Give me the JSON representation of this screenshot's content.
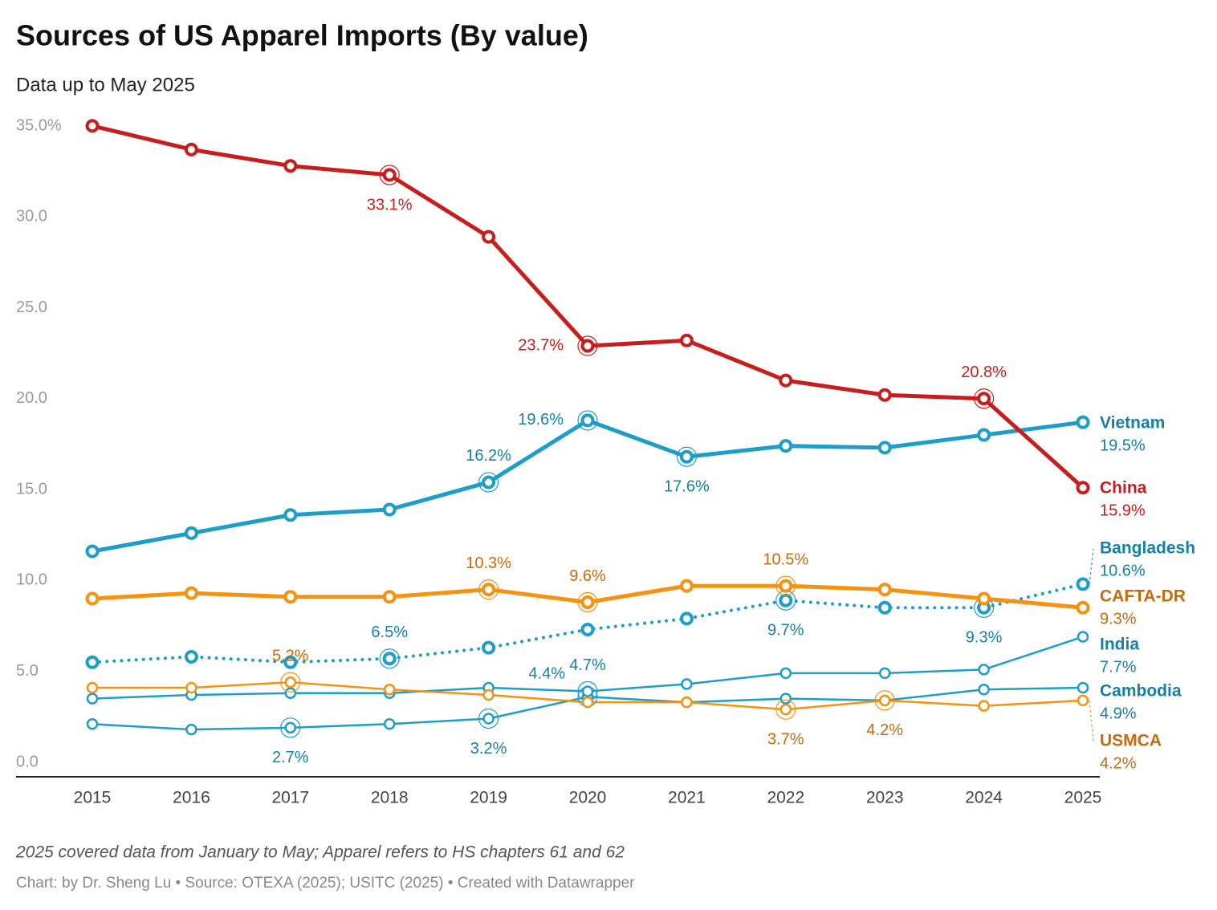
{
  "chart_data": {
    "type": "line",
    "title": "Sources of US Apparel Imports (By value)",
    "subtitle": "Data up to May 2025",
    "note": "2025 covered data from January to May; Apparel refers to HS chapters 61 and 62",
    "credit": "Chart: by Dr. Sheng Lu • Source: OTEXA (2025); USITC (2025) • Created with Datawrapper",
    "x": [
      2015,
      2016,
      2017,
      2018,
      2019,
      2020,
      2021,
      2022,
      2023,
      2024,
      2025
    ],
    "ylim": [
      0,
      35
    ],
    "yticks": [
      {
        "value": 0,
        "label": "0.0"
      },
      {
        "value": 5,
        "label": "5.0"
      },
      {
        "value": 10,
        "label": "10.0"
      },
      {
        "value": 15,
        "label": "15.0"
      },
      {
        "value": 20,
        "label": "20.0"
      },
      {
        "value": 25,
        "label": "25.0"
      },
      {
        "value": 30,
        "label": "30.0"
      },
      {
        "value": 35,
        "label": "35.0%"
      }
    ],
    "grid": false,
    "series": [
      {
        "name": "China",
        "color": "#c71e1d",
        "label_color": "#c71e1d",
        "style": "solid",
        "width": 5,
        "values": [
          35.8,
          34.5,
          33.6,
          33.1,
          29.7,
          23.7,
          24.0,
          21.8,
          21.0,
          20.8,
          15.9
        ],
        "value_labels": [
          null,
          null,
          null,
          "33.1%",
          null,
          "23.7%",
          null,
          null,
          null,
          "20.8%",
          "15.9%"
        ]
      },
      {
        "name": "Vietnam",
        "color": "#1d9ec9",
        "label_color": "#1580a8",
        "style": "solid",
        "width": 5,
        "values": [
          12.4,
          13.4,
          14.4,
          14.7,
          16.2,
          19.6,
          17.6,
          18.2,
          18.1,
          18.8,
          19.5
        ],
        "value_labels": [
          null,
          null,
          null,
          null,
          "16.2%",
          "19.6%",
          "17.6%",
          null,
          null,
          null,
          "19.5%"
        ]
      },
      {
        "name": "Bangladesh",
        "color": "#1d9ec9",
        "label_color": "#1580a8",
        "style": "dotted",
        "width": 4,
        "values": [
          6.3,
          6.6,
          6.3,
          6.5,
          7.1,
          8.1,
          8.7,
          9.7,
          9.3,
          9.3,
          10.6
        ],
        "value_labels": [
          null,
          null,
          null,
          "6.5%",
          null,
          null,
          null,
          "9.7%",
          null,
          "9.3%",
          "10.6%"
        ]
      },
      {
        "name": "CAFTA-DR",
        "color": "#f5920f",
        "label_color": "#c86a0a",
        "style": "solid",
        "width": 5,
        "values": [
          9.8,
          10.1,
          9.9,
          9.9,
          10.3,
          9.6,
          10.5,
          10.5,
          10.3,
          9.8,
          9.3
        ],
        "value_labels": [
          null,
          null,
          null,
          null,
          "10.3%",
          "9.6%",
          null,
          "10.5%",
          null,
          null,
          "9.3%"
        ]
      },
      {
        "name": "India",
        "color": "#1d9ec9",
        "label_color": "#1580a8",
        "style": "solid",
        "width": 2.5,
        "values": [
          4.3,
          4.5,
          4.6,
          4.6,
          4.9,
          4.7,
          5.1,
          5.7,
          5.7,
          5.9,
          7.7
        ],
        "value_labels": [
          null,
          null,
          null,
          null,
          null,
          "4.7%",
          null,
          null,
          null,
          null,
          "7.7%"
        ]
      },
      {
        "name": "Cambodia",
        "color": "#1d9ec9",
        "label_color": "#1580a8",
        "style": "solid",
        "width": 2.5,
        "values": [
          2.9,
          2.6,
          2.7,
          2.9,
          3.2,
          4.4,
          4.1,
          4.3,
          4.2,
          4.8,
          4.9
        ],
        "value_labels": [
          null,
          null,
          "2.7%",
          null,
          "3.2%",
          "4.4%",
          null,
          null,
          null,
          null,
          "4.9%"
        ]
      },
      {
        "name": "USMCA",
        "color": "#f5920f",
        "label_color": "#c86a0a",
        "style": "solid",
        "width": 2.5,
        "values": [
          4.9,
          4.9,
          5.2,
          4.8,
          4.5,
          4.1,
          4.1,
          3.7,
          4.2,
          3.9,
          4.2
        ],
        "value_labels": [
          null,
          null,
          "5.2%",
          null,
          null,
          null,
          null,
          "3.7%",
          "4.2%",
          null,
          "4.2%"
        ]
      }
    ]
  }
}
